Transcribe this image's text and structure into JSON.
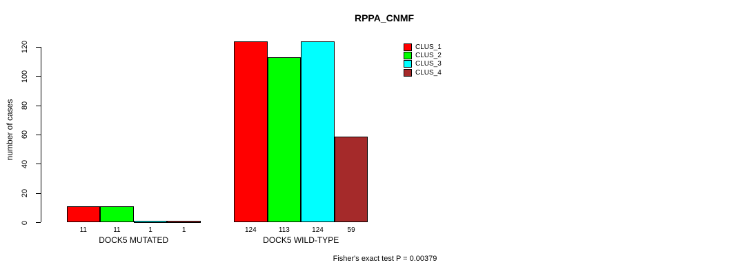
{
  "chart_data": {
    "type": "bar",
    "title": "RPPA_CNMF",
    "ylabel": "number of cases",
    "xlabel": "",
    "ylim": [
      0,
      120
    ],
    "yticks": [
      0,
      20,
      40,
      60,
      80,
      100,
      120
    ],
    "grid": false,
    "legend_position": "top-right",
    "groups": [
      {
        "label": "DOCK5 MUTATED",
        "values": [
          11,
          11,
          1,
          1
        ]
      },
      {
        "label": "DOCK5 WILD-TYPE",
        "values": [
          124,
          113,
          124,
          59
        ]
      }
    ],
    "series": [
      {
        "name": "CLUS_1",
        "color": "#FF0000"
      },
      {
        "name": "CLUS_2",
        "color": "#00FF00"
      },
      {
        "name": "CLUS_3",
        "color": "#00FFFF"
      },
      {
        "name": "CLUS_4",
        "color": "#A52A2A"
      }
    ],
    "annotation": "Fisher's exact test P = 0.00379"
  }
}
